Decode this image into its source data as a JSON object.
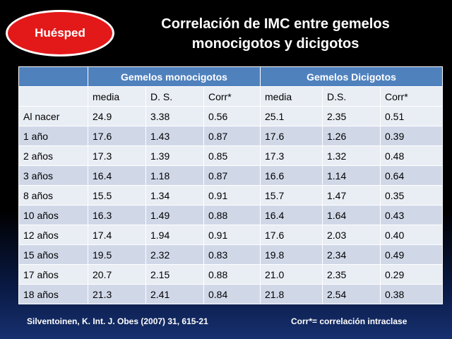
{
  "badge": {
    "label": "Huésped"
  },
  "title": {
    "line1": "Correlación de IMC entre gemelos",
    "line2": "monocigotos y dicigotos"
  },
  "table": {
    "groups": [
      "",
      "Gemelos monocigotos",
      "Gemelos Dicigotos"
    ],
    "subheaders": [
      "",
      "media",
      "D. S.",
      "Corr*",
      "media",
      "D.S.",
      "Corr*"
    ],
    "rows": [
      [
        "Al nacer",
        "24.9",
        "3.38",
        "0.56",
        "25.1",
        "2.35",
        "0.51"
      ],
      [
        "1 año",
        "17.6",
        "1.43",
        "0.87",
        "17.6",
        "1.26",
        "0.39"
      ],
      [
        "2 años",
        "17.3",
        "1.39",
        "0.85",
        "17.3",
        "1.32",
        "0.48"
      ],
      [
        "3 años",
        "16.4",
        "1.18",
        "0.87",
        "16.6",
        "1.14",
        "0.64"
      ],
      [
        "8 años",
        "15.5",
        "1.34",
        "0.91",
        "15.7",
        "1.47",
        "0.35"
      ],
      [
        "10 años",
        "16.3",
        "1.49",
        "0.88",
        "16.4",
        "1.64",
        "0.43"
      ],
      [
        "12 años",
        "17.4",
        "1.94",
        "0.91",
        "17.6",
        "2.03",
        "0.40"
      ],
      [
        "15 años",
        "19.5",
        "2.32",
        "0.83",
        "19.8",
        "2.34",
        "0.49"
      ],
      [
        "17 años",
        "20.7",
        "2.15",
        "0.88",
        "21.0",
        "2.35",
        "0.29"
      ],
      [
        "18 años",
        "21.3",
        "2.41",
        "0.84",
        "21.8",
        "2.54",
        "0.38"
      ]
    ]
  },
  "footer": {
    "citation": "Silventoinen, K. Int. J. Obes (2007) 31, 615-21",
    "note": "Corr*= correlación intraclase"
  },
  "colors": {
    "badge": "#e31919",
    "header": "#4f81bd",
    "row_dark": "#d0d8e8",
    "row_light": "#e9edf4"
  }
}
